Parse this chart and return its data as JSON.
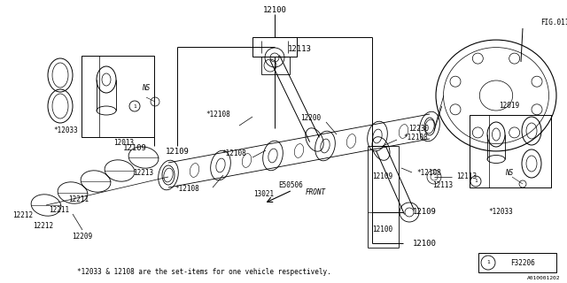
{
  "bg_color": "#ffffff",
  "line_color": "#000000",
  "text_color": "#000000",
  "fig_width": 6.4,
  "fig_height": 3.2,
  "dpi": 100,
  "footnote": "*12033 & 12108 are the set-items for one vehicle respectively.",
  "diagram_id": "A010001202",
  "part_ref": "F32206"
}
